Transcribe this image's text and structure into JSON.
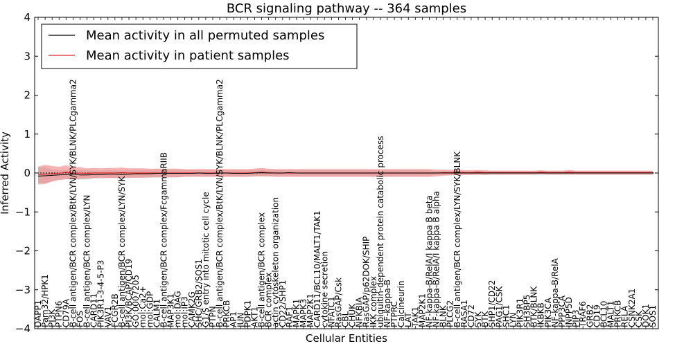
{
  "chart_data": {
    "type": "line",
    "title": "BCR signaling pathway -- 364 samples",
    "xlabel": "Cellular Entities",
    "ylabel": "Inferred Activity",
    "ylim": [
      -4,
      4
    ],
    "yticks": [
      -4,
      -3,
      -2,
      -1,
      0,
      1,
      2,
      3,
      4
    ],
    "ytick_labels": [
      "−4",
      "−3",
      "−2",
      "−1",
      "0",
      "1",
      "2",
      "3",
      "4"
    ],
    "grid": false,
    "legend_position": "top-left",
    "colors": {
      "permuted": "#000000",
      "patient": "#d62728",
      "patient_band": "#f08080",
      "permuted_band": "#bbbbbb",
      "zero_line": "#000000"
    },
    "categories": [
      "DAPP1",
      "Pam32/HPK1",
      "PI3K",
      "PTPN6",
      "CD79A",
      "B-cell antigen/BCR complex/BtK/LYN/SYK/BLNK/PLCgamma2",
      "FOS",
      "B-cell antigen/BCR complex/LYN",
      "CARD11",
      "PIK3R1-3-4-5-P3",
      "VAV1",
      "FCGR2B",
      "B-cell antigen/BCR complex/LYN/SYK",
      "PI3K/BCAP/CD19",
      "GO:0007205",
      "mol:Ca2+",
      "mol:GDP",
      "CALM1",
      "B-cell antigen/BCR complex/FcgammaRIIB",
      "MAP3K1",
      "mol:DAG",
      "mol:IP3",
      "CAMK2G",
      "SHC/GRB2/SOS1",
      "G1/S entry into mitotic cell cycle",
      "PTPN",
      "B-cell antigen/BCR complex/BtK/LYN/SYK/BLNK/PLCgamma2",
      "PRKCB",
      "AP1",
      "JUN",
      "PDPK1",
      "AKT1",
      "B-cell antigen/BCR complex",
      "BCR complex",
      "actin cytoskeleton organization",
      "CD22/SHP1",
      "RAF1",
      "MAPK1",
      "MAPK3",
      "MAP2K1",
      "CARD11/BCL10/MALT1/TAK1",
      "cytokine secretion",
      "NFATC1",
      "RasGAP/Csk",
      "CBL",
      "CHUK",
      "NFKBIA",
      "RasGAP/p62DOK/SHIP",
      "IKK complex",
      "ubiquitin-dependent protein catabolic process",
      "NF-kappa-B",
      "PTPRC",
      "Calcineurin",
      "LAT",
      "TAK1",
      "MAP2K1",
      "NF-kappa-B/RelA/I kappa B beta",
      "NF-kappa-B/RelA/I kappa B alpha",
      "BLNK",
      "PLCG2",
      "B-cell antigen/BCR complex/LYN/SYK/BLNK",
      "RASA1",
      "CD72",
      "SYK",
      "BTK",
      "SHP1/CD22",
      "PAG1/CSK",
      "SHC1",
      "LYN",
      "PIK3R1",
      "SH3BP5",
      "BTK/BLNK",
      "IKBKB",
      "PIK3CA",
      "NF-kappa-B/RelA",
      "PPP3CA",
      "INPP5D",
      "PIP3",
      "TRAF6",
      "GRB2",
      "CD19",
      "BCL10",
      "MALT1",
      "PRKCB",
      "RELA",
      "CSNK2A1",
      "CSK",
      "DOK1",
      "SOS1"
    ],
    "series": [
      {
        "name": "Mean activity in all permuted samples",
        "values": [
          -0.08,
          -0.07,
          -0.06,
          -0.05,
          -0.04,
          -0.03,
          -0.05,
          -0.05,
          -0.04,
          -0.04,
          -0.03,
          -0.03,
          -0.04,
          -0.03,
          -0.02,
          -0.02,
          -0.02,
          -0.01,
          -0.01,
          -0.01,
          -0.01,
          -0.01,
          -0.01,
          0.0,
          -0.01,
          -0.01,
          0.0,
          0.0,
          -0.01,
          -0.01,
          -0.01,
          0.0,
          0.01,
          0.0,
          0.0,
          0.0,
          0.01,
          0.0,
          0.0,
          0.0,
          0.0,
          0.0,
          0.0,
          0.0,
          0.0,
          0.0,
          0.0,
          0.0,
          0.0,
          0.0,
          0.0,
          0.0,
          0.0,
          0.0,
          0.0,
          0.0,
          0.0,
          0.0,
          0.0,
          0.0,
          0.0,
          0.0,
          0.0,
          0.0,
          0.0,
          0.0,
          0.0,
          0.0,
          0.0,
          0.0,
          0.0,
          0.0,
          0.0,
          0.0,
          0.0,
          0.0,
          0.0,
          0.0,
          0.0,
          0.0,
          0.0,
          0.0,
          0.0,
          0.0,
          0.0,
          0.0,
          0.0,
          0.0,
          0.0
        ],
        "band": [
          0.22,
          0.22,
          0.15,
          0.12,
          0.12,
          0.12,
          0.12,
          0.12,
          0.1,
          0.1,
          0.1,
          0.1,
          0.1,
          0.1,
          0.1,
          0.1,
          0.1,
          0.1,
          0.1,
          0.1,
          0.1,
          0.08,
          0.08,
          0.08,
          0.08,
          0.08,
          0.08,
          0.08,
          0.08,
          0.08,
          0.08,
          0.08,
          0.08,
          0.08,
          0.08,
          0.08,
          0.08,
          0.08,
          0.08,
          0.08,
          0.08,
          0.08,
          0.08,
          0.08,
          0.08,
          0.08,
          0.08,
          0.08,
          0.08,
          0.08,
          0.08,
          0.08,
          0.08,
          0.08,
          0.08,
          0.08,
          0.08,
          0.05,
          0.05,
          0.05,
          0.05,
          0.05,
          0.05,
          0.05,
          0.05,
          0.05,
          0.05,
          0.05,
          0.05,
          0.05,
          0.05,
          0.05,
          0.05,
          0.05,
          0.05,
          0.05,
          0.05,
          0.05,
          0.05,
          0.05,
          0.05,
          0.05,
          0.05,
          0.05,
          0.05,
          0.05,
          0.05,
          0.05,
          0.05
        ]
      },
      {
        "name": "Mean activity in patient samples",
        "values": [
          -0.05,
          -0.03,
          -0.02,
          -0.01,
          0.02,
          -0.01,
          0.0,
          -0.01,
          0.0,
          0.0,
          0.0,
          0.0,
          0.01,
          0.0,
          0.0,
          0.0,
          0.0,
          0.0,
          0.0,
          0.0,
          0.0,
          0.0,
          0.0,
          0.0,
          0.0,
          0.0,
          0.0,
          0.0,
          0.0,
          0.0,
          0.0,
          0.01,
          0.02,
          0.01,
          0.0,
          0.0,
          0.0,
          0.0,
          0.0,
          0.0,
          0.0,
          0.0,
          0.0,
          0.0,
          0.0,
          0.0,
          0.0,
          0.0,
          0.0,
          0.0,
          0.0,
          0.0,
          0.0,
          0.0,
          0.0,
          0.0,
          0.0,
          0.0,
          0.01,
          0.01,
          0.02,
          0.01,
          0.01,
          0.02,
          0.01,
          0.01,
          0.01,
          0.01,
          0.01,
          0.01,
          0.01,
          0.01,
          0.02,
          0.01,
          0.01,
          0.01,
          0.02,
          0.01,
          0.01,
          0.01,
          0.01,
          0.01,
          0.01,
          0.01,
          0.01,
          0.01,
          0.01,
          0.01,
          0.01
        ],
        "band": [
          0.22,
          0.24,
          0.2,
          0.17,
          0.18,
          0.15,
          0.15,
          0.13,
          0.13,
          0.12,
          0.13,
          0.13,
          0.13,
          0.12,
          0.12,
          0.12,
          0.11,
          0.11,
          0.11,
          0.11,
          0.11,
          0.1,
          0.1,
          0.1,
          0.1,
          0.1,
          0.1,
          0.1,
          0.1,
          0.1,
          0.1,
          0.1,
          0.11,
          0.1,
          0.1,
          0.1,
          0.1,
          0.1,
          0.1,
          0.1,
          0.1,
          0.1,
          0.1,
          0.1,
          0.1,
          0.1,
          0.1,
          0.1,
          0.1,
          0.1,
          0.1,
          0.1,
          0.1,
          0.1,
          0.1,
          0.1,
          0.1,
          0.09,
          0.08,
          0.07,
          0.07,
          0.06,
          0.06,
          0.06,
          0.06,
          0.05,
          0.05,
          0.05,
          0.05,
          0.05,
          0.05,
          0.05,
          0.05,
          0.05,
          0.05,
          0.05,
          0.06,
          0.05,
          0.05,
          0.05,
          0.05,
          0.05,
          0.05,
          0.05,
          0.05,
          0.05,
          0.05,
          0.05,
          0.05
        ]
      }
    ]
  }
}
